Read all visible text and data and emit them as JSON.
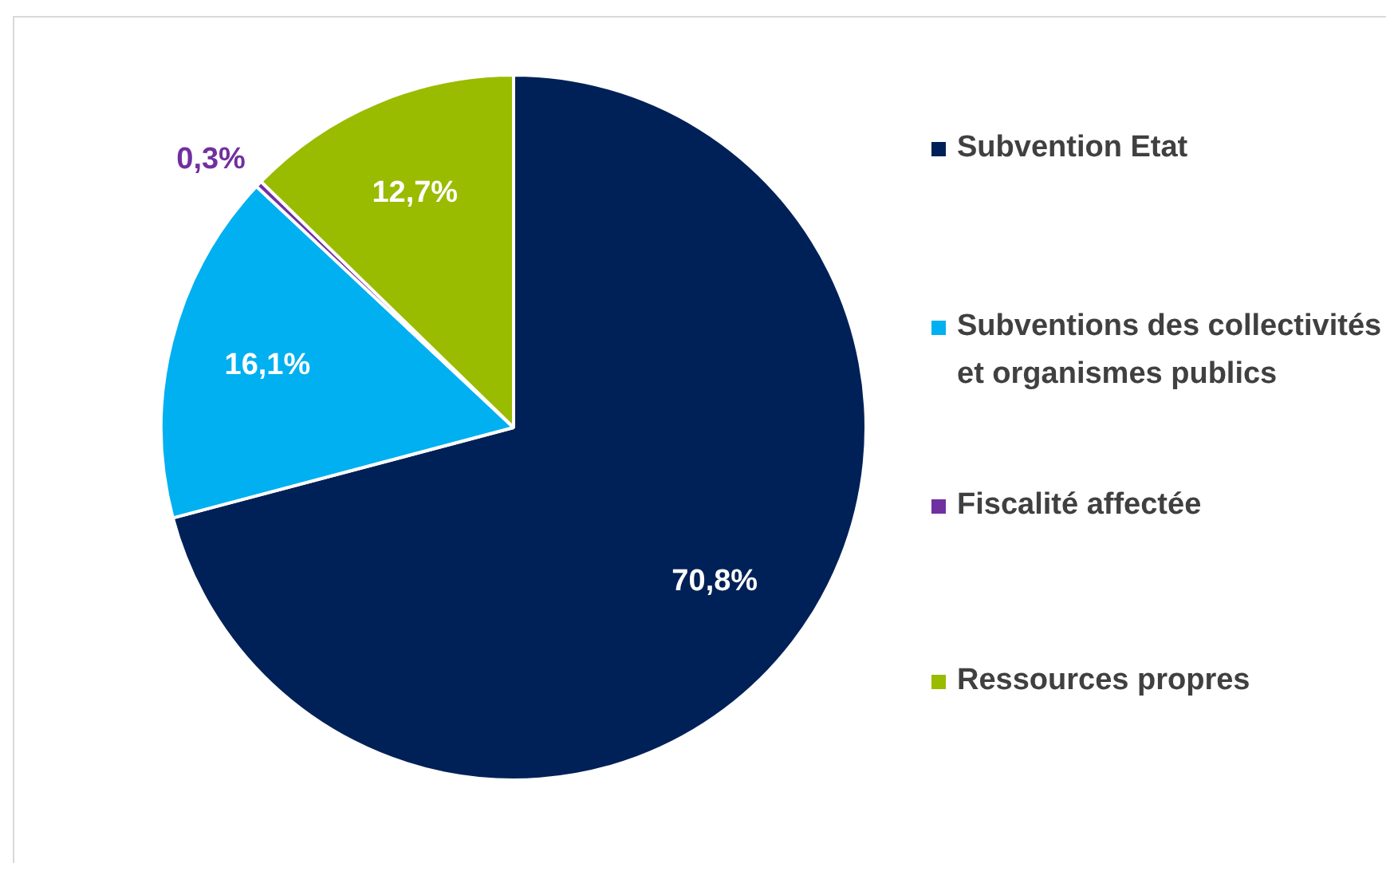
{
  "chart_data": {
    "type": "pie",
    "categories": [
      "Subvention Etat",
      "Subventions des collectivités et organismes publics",
      "Fiscalité affectée",
      "Ressources propres"
    ],
    "values": [
      70.8,
      16.1,
      0.3,
      12.7
    ],
    "colors": [
      "#002157",
      "#00b0f0",
      "#7030a0",
      "#99bb00"
    ],
    "value_labels": [
      "70,8%",
      "16,1%",
      "0,3%",
      "12,7%"
    ],
    "legend": "right"
  }
}
